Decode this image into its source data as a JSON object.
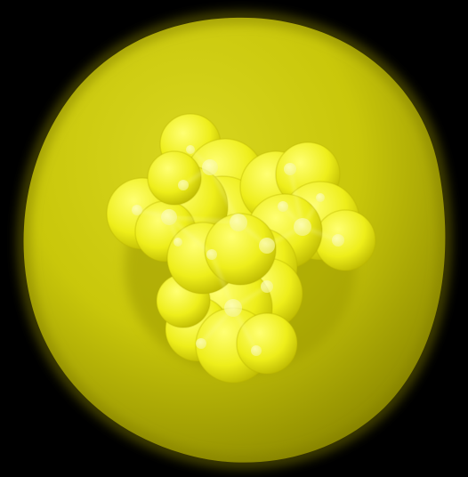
{
  "scene": {
    "background_color": "#000000",
    "outer_surface": {
      "kind": "translucent-isosurface",
      "color": "#c9c70a",
      "highlight": "#d8d620",
      "shadow": "#8f8c00"
    },
    "inner_surface": {
      "kind": "molecular-surface",
      "color": "#eeee1a",
      "highlight": "#ffff73",
      "shadow": "#b9b500"
    },
    "atoms": {
      "color": "#f4f48a",
      "bond_color": "#fbfba8"
    }
  }
}
